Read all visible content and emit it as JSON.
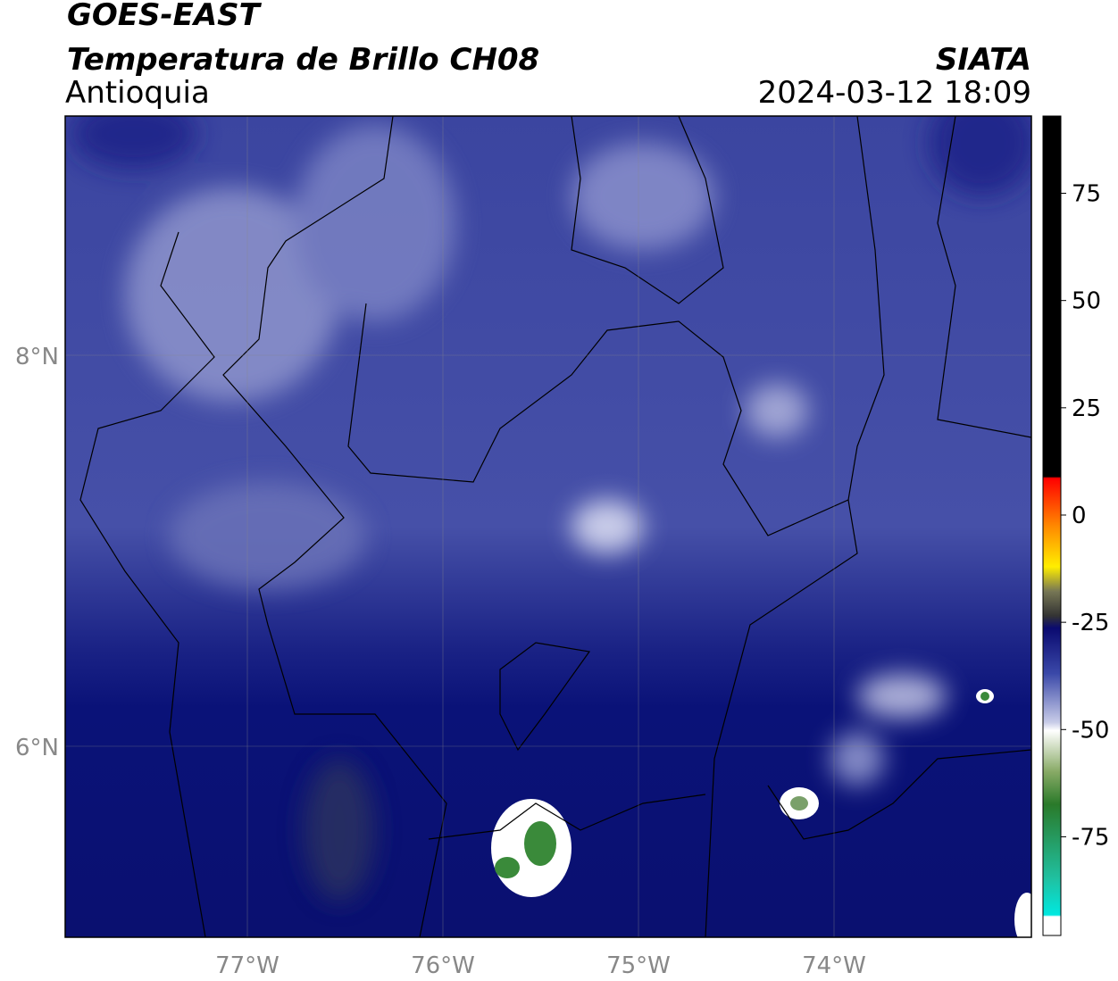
{
  "header": {
    "title": "GOES-EAST",
    "subtitle": "Temperatura de Brillo CH08",
    "region": "Antioquia",
    "source": "SIATA",
    "datetime": "2024-03-12 18:09"
  },
  "map": {
    "lon_labels": [
      "77°W",
      "76°W",
      "75°W",
      "74°W"
    ],
    "lat_labels": [
      "8°N",
      "6°N"
    ]
  },
  "colorbar": {
    "lim": [
      -98,
      93
    ],
    "ticks": [
      75,
      50,
      25,
      0,
      -25,
      -50,
      -75
    ]
  }
}
